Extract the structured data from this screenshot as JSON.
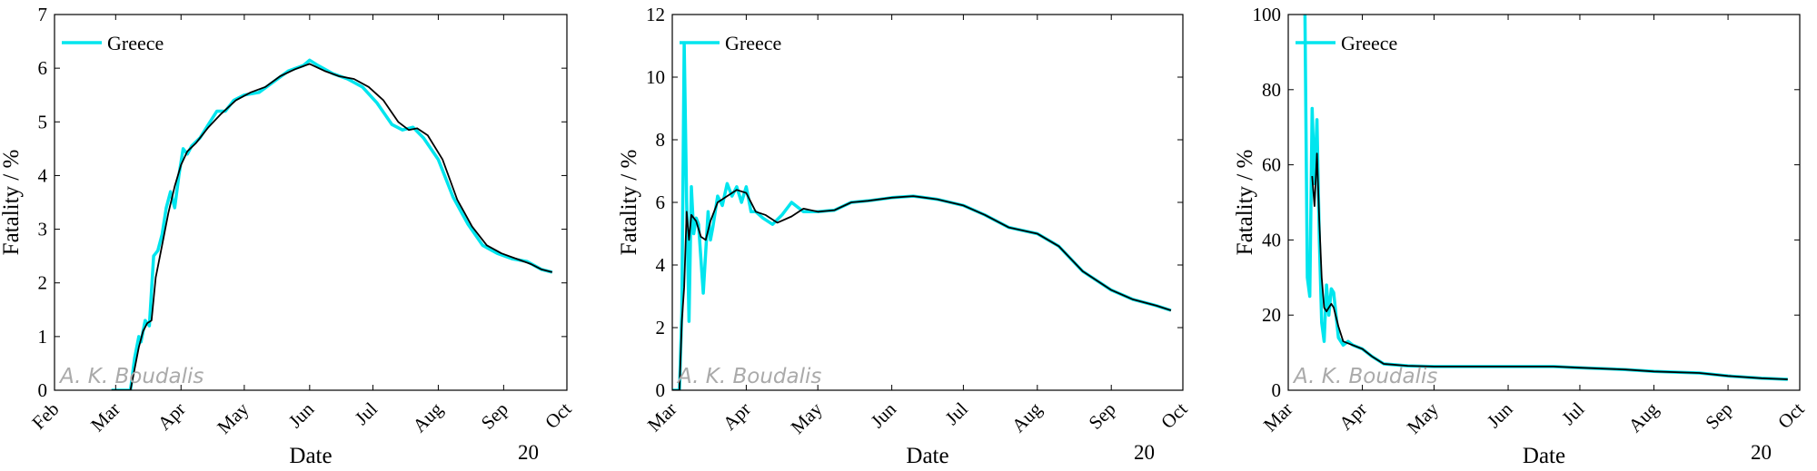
{
  "figure": {
    "watermark": "A. K. Boudalis",
    "colors": {
      "raw": "#00e5ee",
      "smoothed": "#000000",
      "axis": "#000000",
      "watermark": "#aaaaaa"
    }
  },
  "chart_data": [
    {
      "type": "line",
      "xlabel": "Date",
      "ylabel": "Fatality / %",
      "year_label": "20",
      "ylim": [
        0,
        7
      ],
      "yticks": [
        0,
        1,
        2,
        3,
        4,
        5,
        6,
        7
      ],
      "xlim": [
        "2020-02-01",
        "2020-10-01"
      ],
      "xticks": [
        {
          "date": "2020-02-01",
          "label": "Feb"
        },
        {
          "date": "2020-03-01",
          "label": "Mar"
        },
        {
          "date": "2020-04-01",
          "label": "Apr"
        },
        {
          "date": "2020-05-01",
          "label": "May"
        },
        {
          "date": "2020-06-01",
          "label": "Jun"
        },
        {
          "date": "2020-07-01",
          "label": "Jul"
        },
        {
          "date": "2020-08-01",
          "label": "Aug"
        },
        {
          "date": "2020-09-01",
          "label": "Sep"
        },
        {
          "date": "2020-10-01",
          "label": "Oct"
        }
      ],
      "legend": {
        "placement": "top-left",
        "entries": [
          "Greece"
        ]
      },
      "grid": false,
      "series": [
        {
          "name": "Greece",
          "style": "raw",
          "x": [
            "2020-02-28",
            "2020-03-05",
            "2020-03-08",
            "2020-03-10",
            "2020-03-12",
            "2020-03-13",
            "2020-03-15",
            "2020-03-17",
            "2020-03-19",
            "2020-03-21",
            "2020-03-23",
            "2020-03-25",
            "2020-03-27",
            "2020-03-29",
            "2020-03-31",
            "2020-04-02",
            "2020-04-04",
            "2020-04-06",
            "2020-04-10",
            "2020-04-14",
            "2020-04-18",
            "2020-04-22",
            "2020-04-26",
            "2020-05-01",
            "2020-05-08",
            "2020-05-15",
            "2020-05-22",
            "2020-05-29",
            "2020-06-01",
            "2020-06-05",
            "2020-06-12",
            "2020-06-19",
            "2020-06-26",
            "2020-07-03",
            "2020-07-10",
            "2020-07-15",
            "2020-07-20",
            "2020-07-25",
            "2020-08-01",
            "2020-08-08",
            "2020-08-15",
            "2020-08-22",
            "2020-08-29",
            "2020-09-05",
            "2020-09-12",
            "2020-09-19",
            "2020-09-24"
          ],
          "y": [
            0,
            0,
            0,
            0.6,
            1.0,
            0.9,
            1.3,
            1.2,
            2.5,
            2.6,
            2.9,
            3.4,
            3.7,
            3.4,
            4.0,
            4.5,
            4.4,
            4.55,
            4.7,
            4.95,
            5.2,
            5.2,
            5.4,
            5.5,
            5.55,
            5.75,
            5.95,
            6.05,
            6.15,
            6.05,
            5.9,
            5.8,
            5.65,
            5.35,
            4.95,
            4.85,
            4.9,
            4.7,
            4.3,
            3.6,
            3.1,
            2.7,
            2.55,
            2.45,
            2.4,
            2.25,
            2.2
          ]
        },
        {
          "name": "Greece",
          "style": "smoothed",
          "x": [
            "2020-02-28",
            "2020-03-05",
            "2020-03-08",
            "2020-03-10",
            "2020-03-12",
            "2020-03-14",
            "2020-03-16",
            "2020-03-18",
            "2020-03-20",
            "2020-03-23",
            "2020-03-26",
            "2020-03-29",
            "2020-04-01",
            "2020-04-04",
            "2020-04-08",
            "2020-04-14",
            "2020-04-20",
            "2020-04-27",
            "2020-05-04",
            "2020-05-11",
            "2020-05-18",
            "2020-05-25",
            "2020-06-01",
            "2020-06-08",
            "2020-06-15",
            "2020-06-22",
            "2020-06-29",
            "2020-07-06",
            "2020-07-13",
            "2020-07-18",
            "2020-07-22",
            "2020-07-27",
            "2020-08-03",
            "2020-08-10",
            "2020-08-17",
            "2020-08-24",
            "2020-08-31",
            "2020-09-07",
            "2020-09-14",
            "2020-09-19",
            "2020-09-24"
          ],
          "y": [
            0,
            0,
            0,
            0.4,
            0.8,
            1.1,
            1.25,
            1.3,
            2.1,
            2.7,
            3.3,
            3.8,
            4.2,
            4.45,
            4.6,
            4.9,
            5.15,
            5.4,
            5.55,
            5.65,
            5.85,
            5.98,
            6.08,
            5.95,
            5.85,
            5.8,
            5.65,
            5.4,
            5.0,
            4.85,
            4.88,
            4.75,
            4.3,
            3.55,
            3.05,
            2.7,
            2.55,
            2.45,
            2.35,
            2.25,
            2.2
          ]
        }
      ]
    },
    {
      "type": "line",
      "xlabel": "Date",
      "ylabel": "Fatality / %",
      "year_label": "20",
      "ylim": [
        0,
        12
      ],
      "yticks": [
        0,
        2,
        4,
        6,
        8,
        10,
        12
      ],
      "xlim": [
        "2020-03-01",
        "2020-10-01"
      ],
      "xticks": [
        {
          "date": "2020-03-01",
          "label": "Mar"
        },
        {
          "date": "2020-04-01",
          "label": "Apr"
        },
        {
          "date": "2020-05-01",
          "label": "May"
        },
        {
          "date": "2020-06-01",
          "label": "Jun"
        },
        {
          "date": "2020-07-01",
          "label": "Jul"
        },
        {
          "date": "2020-08-01",
          "label": "Aug"
        },
        {
          "date": "2020-09-01",
          "label": "Sep"
        },
        {
          "date": "2020-10-01",
          "label": "Oct"
        }
      ],
      "legend": {
        "placement": "top-left",
        "entries": [
          "Greece"
        ]
      },
      "grid": false,
      "series": [
        {
          "name": "Greece",
          "style": "raw",
          "x": [
            "2020-03-01",
            "2020-03-04",
            "2020-03-05",
            "2020-03-06",
            "2020-03-07",
            "2020-03-08",
            "2020-03-09",
            "2020-03-10",
            "2020-03-11",
            "2020-03-12",
            "2020-03-14",
            "2020-03-16",
            "2020-03-17",
            "2020-03-18",
            "2020-03-20",
            "2020-03-22",
            "2020-03-24",
            "2020-03-26",
            "2020-03-28",
            "2020-03-30",
            "2020-04-01",
            "2020-04-03",
            "2020-04-05",
            "2020-04-08",
            "2020-04-12",
            "2020-04-16",
            "2020-04-20",
            "2020-04-25",
            "2020-05-01",
            "2020-05-08",
            "2020-05-15",
            "2020-05-22",
            "2020-06-01",
            "2020-06-10",
            "2020-06-20",
            "2020-07-01",
            "2020-07-10",
            "2020-07-20",
            "2020-08-01",
            "2020-08-10",
            "2020-08-20",
            "2020-09-01",
            "2020-09-10",
            "2020-09-20",
            "2020-09-26"
          ],
          "y": [
            0,
            0,
            2.5,
            11.1,
            6.0,
            2.2,
            6.5,
            5.0,
            5.5,
            5.3,
            3.1,
            5.7,
            4.8,
            5.2,
            6.2,
            5.9,
            6.6,
            6.2,
            6.5,
            6.0,
            6.5,
            5.7,
            5.7,
            5.5,
            5.3,
            5.6,
            6.0,
            5.7,
            5.7,
            5.75,
            6.0,
            6.05,
            6.15,
            6.2,
            6.1,
            5.9,
            5.6,
            5.2,
            5.0,
            4.6,
            3.8,
            3.2,
            2.9,
            2.7,
            2.55
          ]
        },
        {
          "name": "Greece",
          "style": "smoothed",
          "x": [
            "2020-03-01",
            "2020-03-04",
            "2020-03-05",
            "2020-03-06",
            "2020-03-07",
            "2020-03-08",
            "2020-03-09",
            "2020-03-11",
            "2020-03-13",
            "2020-03-15",
            "2020-03-17",
            "2020-03-20",
            "2020-03-24",
            "2020-03-28",
            "2020-04-01",
            "2020-04-05",
            "2020-04-09",
            "2020-04-14",
            "2020-04-20",
            "2020-04-25",
            "2020-05-01",
            "2020-05-08",
            "2020-05-15",
            "2020-05-22",
            "2020-06-01",
            "2020-06-10",
            "2020-06-20",
            "2020-07-01",
            "2020-07-10",
            "2020-07-20",
            "2020-08-01",
            "2020-08-10",
            "2020-08-20",
            "2020-09-01",
            "2020-09-10",
            "2020-09-20",
            "2020-09-26"
          ],
          "y": [
            0,
            0,
            2.2,
            3.3,
            5.7,
            4.8,
            5.6,
            5.4,
            4.9,
            4.8,
            5.4,
            6.0,
            6.2,
            6.4,
            6.3,
            5.7,
            5.6,
            5.35,
            5.55,
            5.8,
            5.7,
            5.75,
            6.0,
            6.05,
            6.15,
            6.2,
            6.1,
            5.9,
            5.6,
            5.2,
            5.0,
            4.6,
            3.8,
            3.2,
            2.9,
            2.7,
            2.55
          ]
        }
      ]
    },
    {
      "type": "line",
      "xlabel": "Date",
      "ylabel": "Fatality / %",
      "year_label": "20",
      "ylim": [
        0,
        100
      ],
      "yticks": [
        0,
        20,
        40,
        60,
        80,
        100
      ],
      "xlim": [
        "2020-03-01",
        "2020-10-01"
      ],
      "xticks": [
        {
          "date": "2020-03-01",
          "label": "Mar"
        },
        {
          "date": "2020-04-01",
          "label": "Apr"
        },
        {
          "date": "2020-05-01",
          "label": "May"
        },
        {
          "date": "2020-06-01",
          "label": "Jun"
        },
        {
          "date": "2020-07-01",
          "label": "Jul"
        },
        {
          "date": "2020-08-01",
          "label": "Aug"
        },
        {
          "date": "2020-09-01",
          "label": "Sep"
        },
        {
          "date": "2020-10-01",
          "label": "Oct"
        }
      ],
      "legend": {
        "placement": "top-left",
        "entries": [
          "Greece"
        ]
      },
      "grid": false,
      "series": [
        {
          "name": "Greece",
          "style": "raw",
          "x": [
            "2020-03-08",
            "2020-03-09",
            "2020-03-10",
            "2020-03-11",
            "2020-03-12",
            "2020-03-13",
            "2020-03-14",
            "2020-03-15",
            "2020-03-16",
            "2020-03-17",
            "2020-03-18",
            "2020-03-19",
            "2020-03-20",
            "2020-03-22",
            "2020-03-24",
            "2020-03-26",
            "2020-03-28",
            "2020-04-01",
            "2020-04-05",
            "2020-04-10",
            "2020-04-20",
            "2020-05-01",
            "2020-05-15",
            "2020-06-01",
            "2020-06-20",
            "2020-07-01",
            "2020-07-20",
            "2020-08-01",
            "2020-08-20",
            "2020-09-01",
            "2020-09-15",
            "2020-09-26"
          ],
          "y": [
            100,
            30,
            25,
            75,
            55,
            72,
            40,
            18,
            13,
            28,
            20,
            27,
            26,
            14,
            12,
            13,
            12,
            11,
            9,
            7,
            6.5,
            6.3,
            6.3,
            6.3,
            6.3,
            6.0,
            5.5,
            5.0,
            4.6,
            3.8,
            3.2,
            2.9
          ]
        },
        {
          "name": "Greece",
          "style": "smoothed",
          "x": [
            "2020-03-11",
            "2020-03-12",
            "2020-03-13",
            "2020-03-14",
            "2020-03-15",
            "2020-03-16",
            "2020-03-17",
            "2020-03-18",
            "2020-03-19",
            "2020-03-20",
            "2020-03-22",
            "2020-03-24",
            "2020-03-26",
            "2020-03-28",
            "2020-04-01",
            "2020-04-05",
            "2020-04-10",
            "2020-04-20",
            "2020-05-01",
            "2020-05-15",
            "2020-06-01",
            "2020-06-20",
            "2020-07-01",
            "2020-07-20",
            "2020-08-01",
            "2020-08-20",
            "2020-09-01",
            "2020-09-15",
            "2020-09-26"
          ],
          "y": [
            57,
            49,
            63,
            45,
            30,
            22,
            21,
            22,
            23,
            22,
            17,
            13,
            12.5,
            12,
            11,
            9,
            7,
            6.5,
            6.3,
            6.3,
            6.3,
            6.3,
            6.0,
            5.5,
            5.0,
            4.6,
            3.8,
            3.2,
            2.9
          ]
        }
      ]
    }
  ]
}
